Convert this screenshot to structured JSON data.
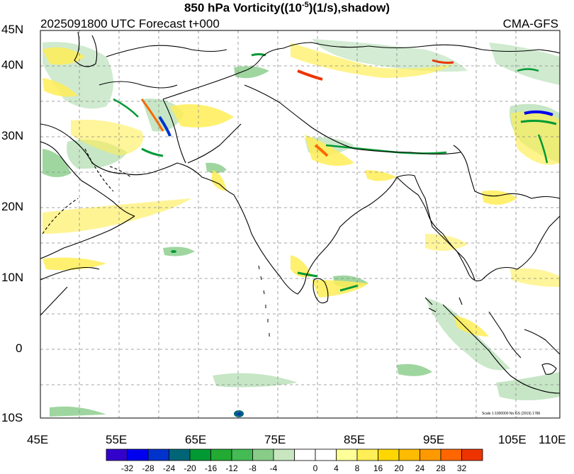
{
  "title": {
    "prefix": "850 hPa Vorticity((10",
    "exponent": "-5",
    "suffix": ")(1/s),shadow)"
  },
  "subtitle": {
    "left": "2025091800 UTC Forecast t+000",
    "right": "CMA-GFS"
  },
  "axes": {
    "lat_labels": [
      "45N",
      "40N",
      "30N",
      "20N",
      "10N",
      "0",
      "10S"
    ],
    "lon_labels": [
      "45E",
      "55E",
      "65E",
      "75E",
      "85E",
      "95E",
      "105E",
      "110E"
    ]
  },
  "colorbar": {
    "labels": [
      "-32",
      "-28",
      "-24",
      "-20",
      "-16",
      "-12",
      "-8",
      "-4",
      "0",
      "4",
      "8",
      "16",
      "20",
      "24",
      "28",
      "32"
    ],
    "colors": [
      "#3300cc",
      "#0000ee",
      "#0033cc",
      "#006677",
      "#009933",
      "#22aa33",
      "#44bb55",
      "#88cc88",
      "#c8e6c0",
      "#ffffff",
      "#ffffff",
      "#ffff99",
      "#ffee55",
      "#ffd700",
      "#ffbb00",
      "#ff9900",
      "#ff6600",
      "#ee3300"
    ]
  },
  "scale_note": "Scale 1:1000000 No:GS (2019) 1786",
  "colors": {
    "positive_vorticity": "#ffee55",
    "strong_positive": "#ee3300",
    "negative_vorticity": "#88cc88",
    "strong_negative": "#0033cc",
    "coastline": "#000000",
    "grid": "#888888"
  }
}
